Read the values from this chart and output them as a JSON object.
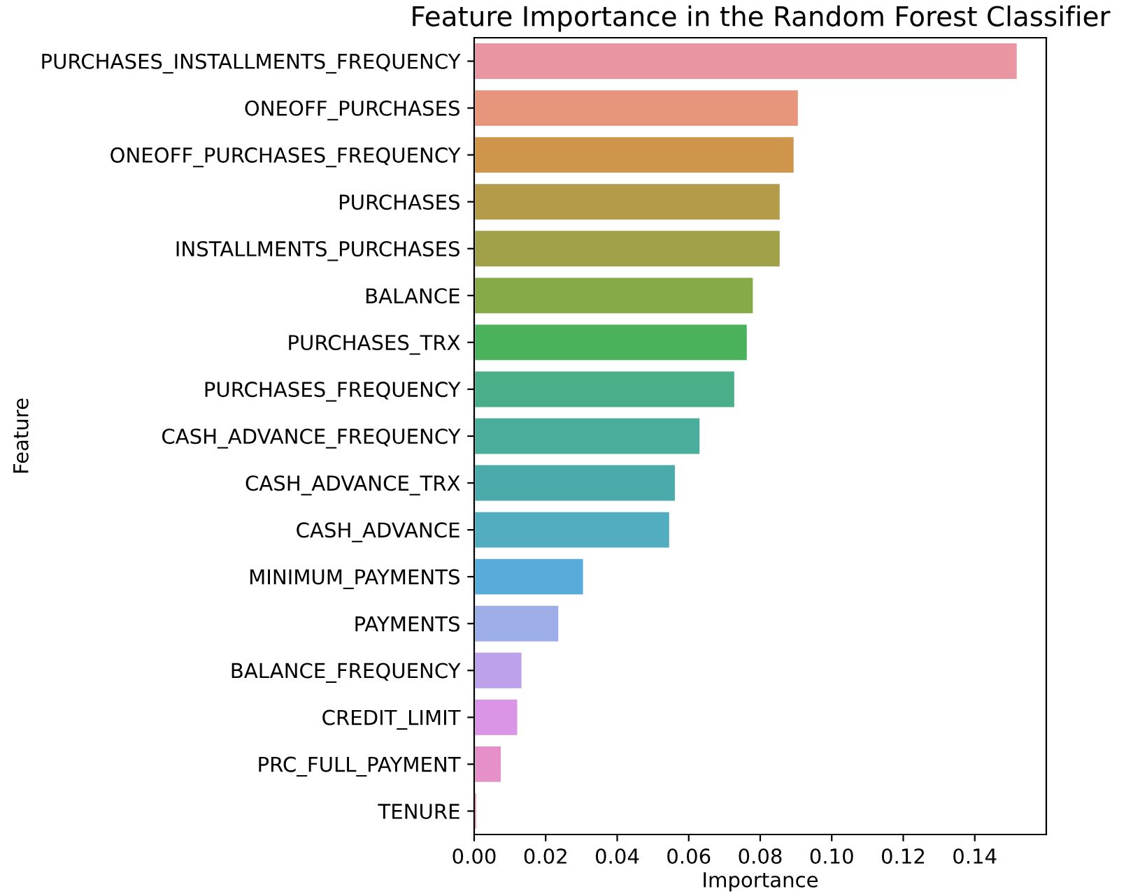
{
  "chart_data": {
    "type": "bar",
    "orientation": "horizontal",
    "title": "Feature Importance in the Random Forest Classifier",
    "xlabel": "Importance",
    "ylabel": "Feature",
    "categories": [
      "PURCHASES_INSTALLMENTS_FREQUENCY",
      "ONEOFF_PURCHASES",
      "ONEOFF_PURCHASES_FREQUENCY",
      "PURCHASES",
      "INSTALLMENTS_PURCHASES",
      "BALANCE",
      "PURCHASES_TRX",
      "PURCHASES_FREQUENCY",
      "CASH_ADVANCE_FREQUENCY",
      "CASH_ADVANCE_TRX",
      "CASH_ADVANCE",
      "MINIMUM_PAYMENTS",
      "PAYMENTS",
      "BALANCE_FREQUENCY",
      "CREDIT_LIMIT",
      "PRC_FULL_PAYMENT",
      "TENURE"
    ],
    "values": [
      0.152,
      0.0908,
      0.0896,
      0.0857,
      0.0857,
      0.0782,
      0.0765,
      0.073,
      0.0633,
      0.0564,
      0.0548,
      0.0307,
      0.0238,
      0.0135,
      0.0123,
      0.0077,
      0.0008
    ],
    "colors": [
      "#ea96a2",
      "#e7967b",
      "#cf964b",
      "#b39b4a",
      "#a0a048",
      "#86aa47",
      "#4bb25c",
      "#4aae89",
      "#4bad9b",
      "#4aabaa",
      "#51adbf",
      "#58acd9",
      "#9cade8",
      "#bda1ea",
      "#da95e7",
      "#e690c9",
      "#e889b0"
    ],
    "xlim": [
      0,
      0.16
    ],
    "xticks": [
      {
        "value": 0,
        "label": "0.00"
      },
      {
        "value": 0.02,
        "label": "0.02"
      },
      {
        "value": 0.04,
        "label": "0.04"
      },
      {
        "value": 0.06,
        "label": "0.06"
      },
      {
        "value": 0.08,
        "label": "0.08"
      },
      {
        "value": 0.1,
        "label": "0.10"
      },
      {
        "value": 0.12,
        "label": "0.12"
      },
      {
        "value": 0.14,
        "label": "0.14"
      }
    ],
    "grid": false,
    "legend": false
  }
}
